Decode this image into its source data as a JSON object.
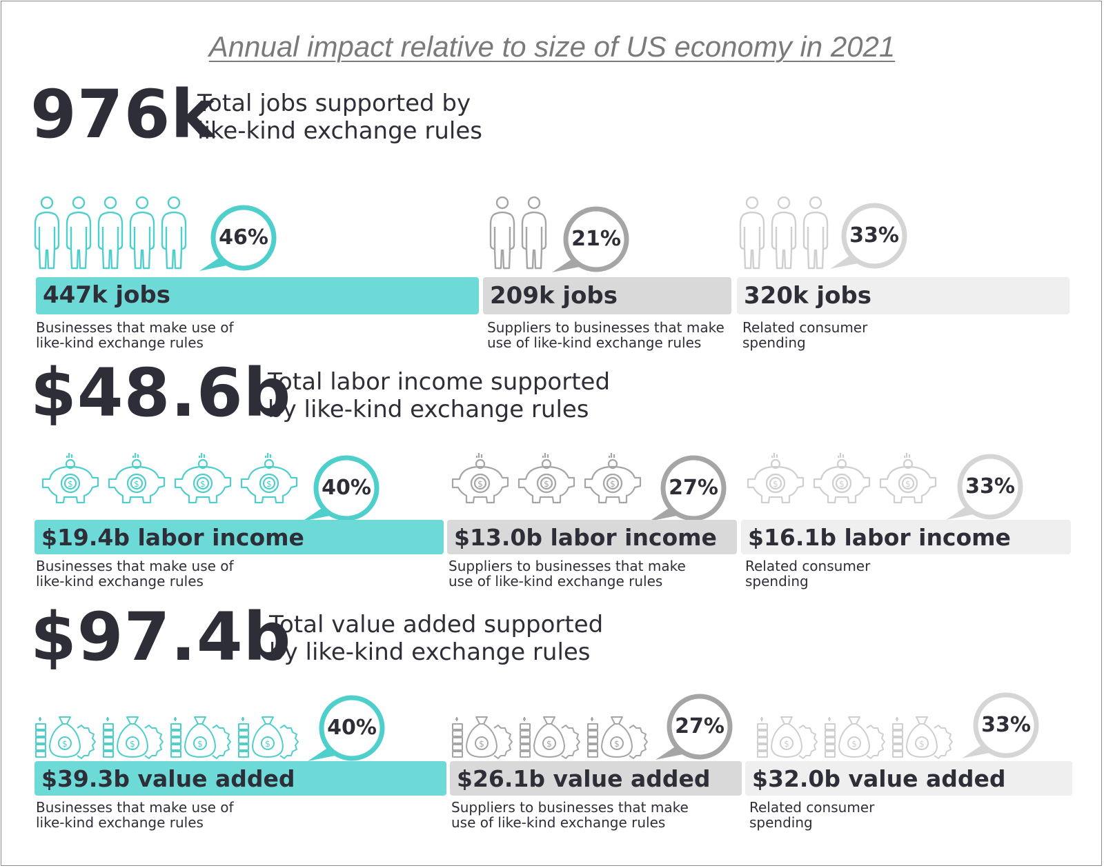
{
  "title": "Annual impact relative to size of US economy in 2021",
  "colors": {
    "teal": "#6ddad8",
    "mid_gray": "#d9d9d9",
    "light_gray": "#efefef",
    "text": "#2e2e38"
  },
  "sections": [
    {
      "total": "976k",
      "description_line1": "Total jobs supported by",
      "description_line2": "like-kind exchange rules",
      "icon": "person-icon",
      "segments": [
        {
          "percent": "46%",
          "value": "447k jobs",
          "label_line1": "Businesses that make use of",
          "label_line2": "like-kind exchange rules",
          "icon_count": 5
        },
        {
          "percent": "21%",
          "value": "209k jobs",
          "label_line1": "Suppliers to businesses that make",
          "label_line2": "use of like-kind exchange rules",
          "icon_count": 2
        },
        {
          "percent": "33%",
          "value": "320k jobs",
          "label_line1": "Related consumer",
          "label_line2": "spending",
          "icon_count": 3
        }
      ]
    },
    {
      "total": "$48.6b",
      "description_line1": "Total labor income supported",
      "description_line2": "by like-kind exchange rules",
      "icon": "piggy-bank-icon",
      "segments": [
        {
          "percent": "40%",
          "value": "$19.4b labor income",
          "label_line1": "Businesses that make use of",
          "label_line2": "like-kind exchange rules",
          "icon_count": 4
        },
        {
          "percent": "27%",
          "value": "$13.0b labor income",
          "label_line1": "Suppliers to businesses that make",
          "label_line2": "use of like-kind exchange rules",
          "icon_count": 3
        },
        {
          "percent": "33%",
          "value": "$16.1b labor income",
          "label_line1": "Related consumer",
          "label_line2": "spending",
          "icon_count": 3
        }
      ]
    },
    {
      "total": "$97.4b",
      "description_line1": "Total value added supported",
      "description_line2": "by like-kind exchange rules",
      "icon": "money-bag-gear-icon",
      "segments": [
        {
          "percent": "40%",
          "value": "$39.3b value added",
          "label_line1": "Businesses that make use of",
          "label_line2": "like-kind exchange rules",
          "icon_count": 4
        },
        {
          "percent": "27%",
          "value": "$26.1b value added",
          "label_line1": "Suppliers to businesses that make",
          "label_line2": "use of like-kind exchange rules",
          "icon_count": 3
        },
        {
          "percent": "33%",
          "value": "$32.0b value added",
          "label_line1": "Related consumer",
          "label_line2": "spending",
          "icon_count": 3
        }
      ]
    }
  ],
  "chart_data": [
    {
      "type": "bar",
      "title": "Total jobs supported by like-kind exchange rules",
      "total": "976k",
      "categories": [
        "Businesses that make use of like-kind exchange rules",
        "Suppliers to businesses that make use of like-kind exchange rules",
        "Related consumer spending"
      ],
      "values": [
        447,
        209,
        320
      ],
      "percents": [
        46,
        21,
        33
      ]
    },
    {
      "type": "bar",
      "title": "Total labor income supported by like-kind exchange rules",
      "total": "$48.6b",
      "categories": [
        "Businesses that make use of like-kind exchange rules",
        "Suppliers to businesses that make use of like-kind exchange rules",
        "Related consumer spending"
      ],
      "values": [
        19.4,
        13.0,
        16.1
      ],
      "percents": [
        40,
        27,
        33
      ]
    },
    {
      "type": "bar",
      "title": "Total value added supported by like-kind exchange rules",
      "total": "$97.4b",
      "categories": [
        "Businesses that make use of like-kind exchange rules",
        "Suppliers to businesses that make use of like-kind exchange rules",
        "Related consumer spending"
      ],
      "values": [
        39.3,
        26.1,
        32.0
      ],
      "percents": [
        40,
        27,
        33
      ]
    }
  ]
}
